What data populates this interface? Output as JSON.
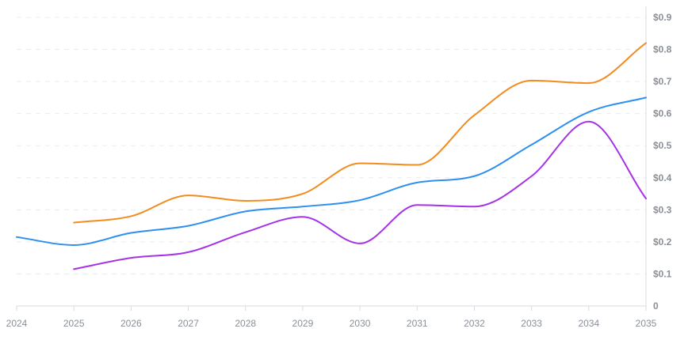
{
  "chart_data": {
    "type": "line",
    "x": [
      "2024",
      "2025",
      "2026",
      "2027",
      "2028",
      "2029",
      "2030",
      "2031",
      "2032",
      "2033",
      "2034",
      "2035"
    ],
    "ylim": [
      0,
      0.9
    ],
    "y_ticks": [
      {
        "value": 0,
        "label": "0"
      },
      {
        "value": 0.1,
        "label": "$0.1"
      },
      {
        "value": 0.2,
        "label": "$0.2"
      },
      {
        "value": 0.3,
        "label": "$0.3"
      },
      {
        "value": 0.4,
        "label": "$0.4"
      },
      {
        "value": 0.5,
        "label": "$0.5"
      },
      {
        "value": 0.6,
        "label": "$0.6"
      },
      {
        "value": 0.7,
        "label": "$0.7"
      },
      {
        "value": 0.8,
        "label": "$0.8"
      },
      {
        "value": 0.9,
        "label": "$0.9"
      }
    ],
    "grid": true,
    "y_axis_side": "right",
    "series": [
      {
        "color": "#f28c1e",
        "values": [
          null,
          0.26,
          0.28,
          0.345,
          0.328,
          0.35,
          0.445,
          0.44,
          0.595,
          0.703,
          0.695,
          0.82
        ]
      },
      {
        "color": "#2d8ff0",
        "values": [
          0.215,
          0.19,
          0.228,
          0.25,
          0.295,
          0.31,
          0.33,
          0.385,
          0.405,
          0.503,
          0.605,
          0.65
        ]
      },
      {
        "color": "#a532e6",
        "values": [
          null,
          0.115,
          0.15,
          0.168,
          0.23,
          0.278,
          0.195,
          0.315,
          0.31,
          0.405,
          0.575,
          0.335
        ]
      }
    ]
  }
}
